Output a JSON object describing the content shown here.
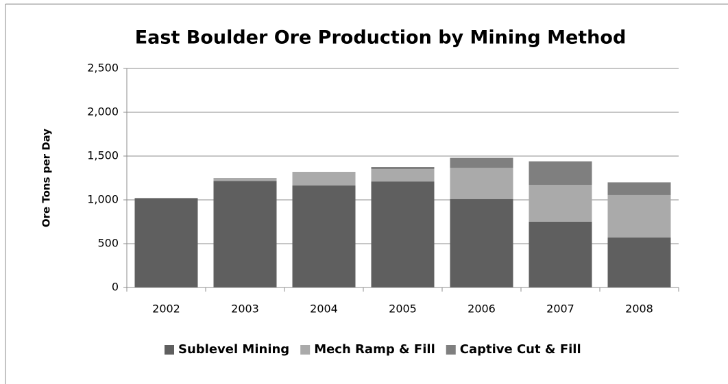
{
  "chart_data": {
    "type": "stacked_bar",
    "title": "East Boulder Ore Production by Mining Method",
    "y_label": "Ore Tons per Day",
    "categories": [
      "2002",
      "2003",
      "2004",
      "2005",
      "2006",
      "2007",
      "2008"
    ],
    "series": [
      {
        "name": "Sublevel Mining",
        "color": "#5f5f5f",
        "values": [
          1020,
          1215,
          1165,
          1210,
          1010,
          750,
          570
        ]
      },
      {
        "name": "Mech Ramp & Fill",
        "color": "#aaaaaa",
        "values": [
          0,
          35,
          155,
          140,
          355,
          420,
          485
        ]
      },
      {
        "name": "Captive Cut & Fill",
        "color": "#7f7f7f",
        "values": [
          0,
          0,
          0,
          25,
          115,
          270,
          145
        ]
      }
    ],
    "ylim": [
      0,
      2500
    ],
    "yticks": [
      0,
      500,
      {
        "value": 1000,
        "label": "1,000"
      },
      {
        "value": 1500,
        "label": "1,500"
      },
      {
        "value": 2000,
        "label": "2,000"
      },
      {
        "value": 2500,
        "label": "2,500"
      }
    ],
    "grid": true
  }
}
